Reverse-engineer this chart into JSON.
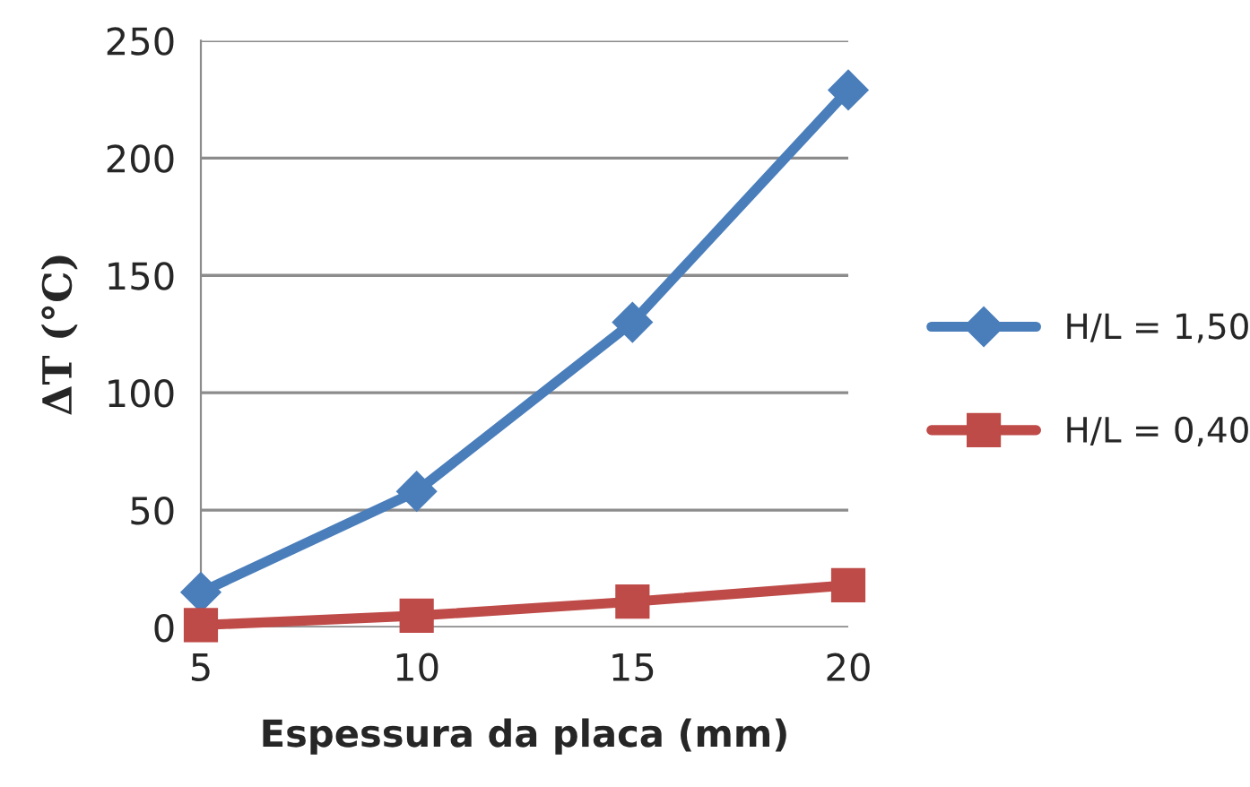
{
  "chart_data": {
    "type": "line",
    "xlabel": "Espessura da placa (mm)",
    "ylabel": "ΔT (°C)",
    "x": [
      5,
      10,
      15,
      20
    ],
    "series": [
      {
        "name": "H/L = 1,50",
        "color": "#4a7ebb",
        "marker": "diamond",
        "values": [
          15,
          58,
          130,
          229
        ]
      },
      {
        "name": "H/L = 0,40",
        "color": "#be4b48",
        "marker": "square",
        "values": [
          1,
          5,
          11,
          18
        ]
      }
    ],
    "xlim": [
      5,
      20
    ],
    "xticks": [
      5,
      10,
      15,
      20
    ],
    "ylim": [
      0,
      250
    ],
    "yticks": [
      0,
      50,
      100,
      150,
      200,
      250
    ],
    "grid": "y",
    "legend": "right",
    "line_style": "solid"
  }
}
